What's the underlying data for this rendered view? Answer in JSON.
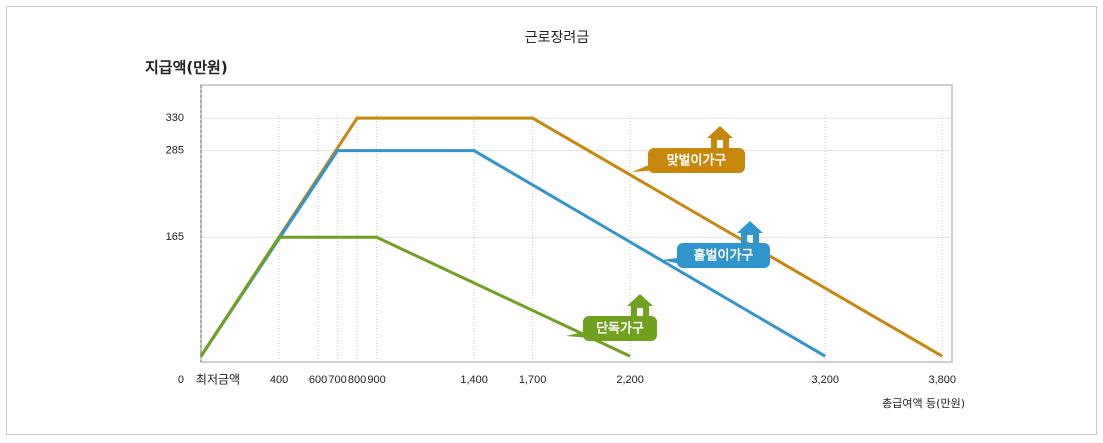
{
  "chart_data": {
    "type": "line",
    "title": "근로장려금",
    "y_label": "지급액(만원)",
    "x_label": "총급여액 등(만원)",
    "xlim": [
      0,
      3850
    ],
    "ylim": [
      -8,
      376
    ],
    "xticks": [
      {
        "value": 0,
        "label": "최저금액"
      },
      400,
      600,
      700,
      800,
      900,
      {
        "value": 1400,
        "label": "1,400"
      },
      {
        "value": 1700,
        "label": "1,700"
      },
      {
        "value": 2200,
        "label": "2,200"
      },
      {
        "value": 3200,
        "label": "3,200"
      },
      {
        "value": 3800,
        "label": "3,800"
      }
    ],
    "yticks": [
      0,
      165,
      285,
      330
    ],
    "grid": true,
    "series": [
      {
        "name": "맞벌이가구",
        "color": "#c8860a",
        "x": [
          0,
          800,
          1700,
          3800
        ],
        "values": [
          0,
          330,
          330,
          0
        ]
      },
      {
        "name": "홑벌이가구",
        "color": "#2f95cc",
        "x": [
          0,
          700,
          1400,
          3200
        ],
        "values": [
          0,
          285,
          285,
          0
        ]
      },
      {
        "name": "단독가구",
        "color": "#6fa11f",
        "x": [
          0,
          400,
          900,
          2200
        ],
        "values": [
          0,
          165,
          165,
          0
        ]
      }
    ]
  }
}
